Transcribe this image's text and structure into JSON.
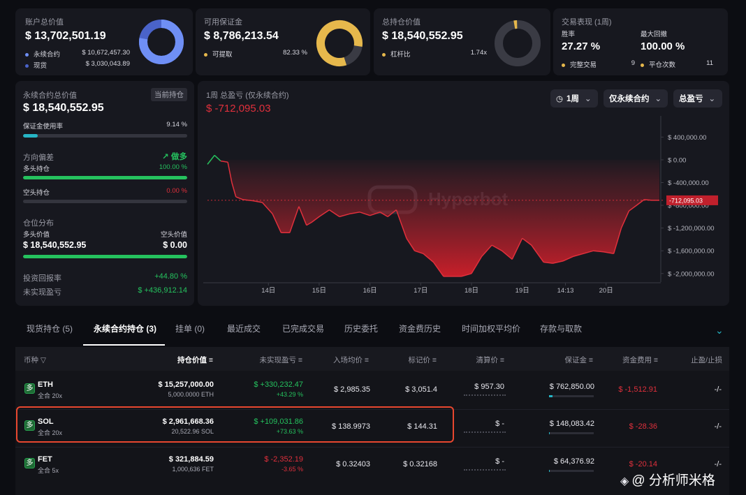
{
  "top_cards": {
    "account": {
      "label": "账户总价值",
      "value": "$ 13,702,501.19",
      "items": [
        {
          "name": "永续合约",
          "value": "$ 10,672,457.30",
          "color": "#6f8ff5"
        },
        {
          "name": "现货",
          "value": "$ 3,030,043.89",
          "color": "#4a63c9"
        }
      ]
    },
    "margin": {
      "label": "可用保证金",
      "value": "$ 8,786,213.54",
      "item_name": "可提取",
      "item_value": "82.33 %",
      "color": "#e6b84c"
    },
    "holding": {
      "label": "总持仓价值",
      "value": "$ 18,540,552.95",
      "item_name": "杠杆比",
      "item_value": "1.74x",
      "color": "#e6b84c"
    },
    "performance": {
      "label": "交易表现 (1周)",
      "win_rate_label": "胜率",
      "win_rate": "27.27 %",
      "drawdown_label": "最大回撤",
      "drawdown": "100.00 %",
      "completed_label": "完整交易",
      "completed": "9",
      "close_label": "平仓次数",
      "close": "11"
    }
  },
  "left_panel": {
    "title": "永续合约总价值",
    "badge": "当前持仓",
    "value": "$ 18,540,552.95",
    "margin_usage_label": "保证金使用率",
    "margin_usage": "9.14 %",
    "margin_usage_pct": 9.14,
    "bias_label": "方向偏差",
    "bias_value": "做多",
    "long_label": "多头持仓",
    "long_pct_text": "100.00 %",
    "long_pct": 100,
    "short_label": "空头持仓",
    "short_pct_text": "0.00 %",
    "short_pct": 0,
    "dist_label": "仓位分布",
    "long_value_label": "多头价值",
    "short_value_label": "空头价值",
    "long_value": "$ 18,540,552.95",
    "short_value": "$ 0.00",
    "roi_label": "投资回报率",
    "roi": "+44.80 %",
    "unrealized_label": "未实现盈亏",
    "unrealized": "$ +436,912.14"
  },
  "chart_panel": {
    "title": "1周 总盈亏 (仅永续合约)",
    "value": "$ -712,095.03",
    "period_button": "1周",
    "scope_button": "仅永续合约",
    "metric_button": "总盈亏",
    "watermark": "Hyperbot",
    "current_label": "-712,095.03"
  },
  "chart_data": {
    "type": "area",
    "y_ticks": [
      "$ 400,000.00",
      "$ 0.00",
      "$ -400,000.00",
      "$ -800,000.00",
      "$ -1,200,000.00",
      "$ -1,600,000.00",
      "$ -2,000,000.00"
    ],
    "y_tick_values": [
      400000,
      0,
      -400000,
      -800000,
      -1200000,
      -1600000,
      -2000000
    ],
    "x_ticks": [
      "14日",
      "15日",
      "16日",
      "17日",
      "18日",
      "19日",
      "14:13",
      "20日"
    ],
    "x_tick_positions": [
      1.2,
      2.2,
      3.2,
      4.2,
      5.2,
      6.2,
      7.05,
      7.85
    ],
    "ylim": [
      -2150000,
      650000
    ],
    "xlim": [
      0,
      8.9
    ],
    "current_value": -712095.03,
    "x": [
      0,
      0.14,
      0.26,
      0.4,
      0.48,
      0.56,
      0.7,
      0.9,
      1.08,
      1.28,
      1.45,
      1.62,
      1.8,
      1.95,
      2.05,
      2.2,
      2.4,
      2.6,
      2.8,
      3.0,
      3.2,
      3.4,
      3.55,
      3.72,
      3.92,
      4.08,
      4.25,
      4.45,
      4.65,
      4.82,
      5.0,
      5.2,
      5.4,
      5.6,
      5.8,
      6.0,
      6.2,
      6.38,
      6.5,
      6.62,
      6.8,
      7.0,
      7.2,
      7.4,
      7.6,
      7.8,
      8.0,
      8.15,
      8.3,
      8.45,
      8.6,
      8.75,
      8.9
    ],
    "values": [
      -80000,
      80000,
      -20000,
      -40000,
      -400000,
      -650000,
      -700000,
      -720000,
      -750000,
      -950000,
      -1280000,
      -1280000,
      -820000,
      -1150000,
      -1100000,
      -1000000,
      -880000,
      -1000000,
      -950000,
      -920000,
      -980000,
      -920000,
      -1000000,
      -880000,
      -1380000,
      -1600000,
      -1650000,
      -1800000,
      -2050000,
      -2050000,
      -2050000,
      -2000000,
      -1700000,
      -1500000,
      -1600000,
      -1750000,
      -1380000,
      -1500000,
      -1650000,
      -1800000,
      -1820000,
      -1780000,
      -1700000,
      -1650000,
      -1600000,
      -1620000,
      -1650000,
      -1200000,
      -900000,
      -800000,
      -700000,
      -712000,
      -712095.03
    ]
  },
  "tabs": [
    "现货持仓 (5)",
    "永续合约持仓 (3)",
    "挂单 (0)",
    "最近成交",
    "已完成交易",
    "历史委托",
    "资金费历史",
    "时间加权平均价",
    "存款与取款"
  ],
  "table": {
    "headers": [
      "币种",
      "持仓价值",
      "未实现盈亏",
      "入场均价",
      "标记价",
      "清算价",
      "保证金",
      "资金费用",
      "止盈/止损"
    ],
    "rows": [
      {
        "badge": "多",
        "coin": "ETH",
        "mode": "全合 20x",
        "value": "$ 15,257,000.00",
        "size": "5,000.0000 ETH",
        "pnl": "$ +330,232.47",
        "pnl_pct": "+43.29 %",
        "pnl_color": "green",
        "entry": "$ 2,985.35",
        "mark": "$ 3,051.4",
        "liq": "$ 957.30",
        "margin": "$ 762,850.00",
        "margin_pct": 8,
        "funding": "$ -1,512.91",
        "tpsl": "-/-"
      },
      {
        "badge": "多",
        "coin": "SOL",
        "mode": "全合 20x",
        "value": "$ 2,961,668.36",
        "size": "20,522.96 SOL",
        "pnl": "$ +109,031.86",
        "pnl_pct": "+73.63 %",
        "pnl_color": "green",
        "entry": "$ 138.9973",
        "mark": "$ 144.31",
        "liq": "$ -",
        "margin": "$ 148,083.42",
        "margin_pct": 2,
        "funding": "$ -28.36",
        "tpsl": "-/-"
      },
      {
        "badge": "多",
        "coin": "FET",
        "mode": "全合 5x",
        "value": "$ 321,884.59",
        "size": "1,000,636 FET",
        "pnl": "$ -2,352.19",
        "pnl_pct": "-3.65 %",
        "pnl_color": "red",
        "entry": "$ 0.32403",
        "mark": "$ 0.32168",
        "liq": "$ -",
        "margin": "$ 64,376.92",
        "margin_pct": 2,
        "funding": "$ -20.14",
        "tpsl": "-/-"
      }
    ]
  },
  "watermark_footer": "@ 分析师米格"
}
